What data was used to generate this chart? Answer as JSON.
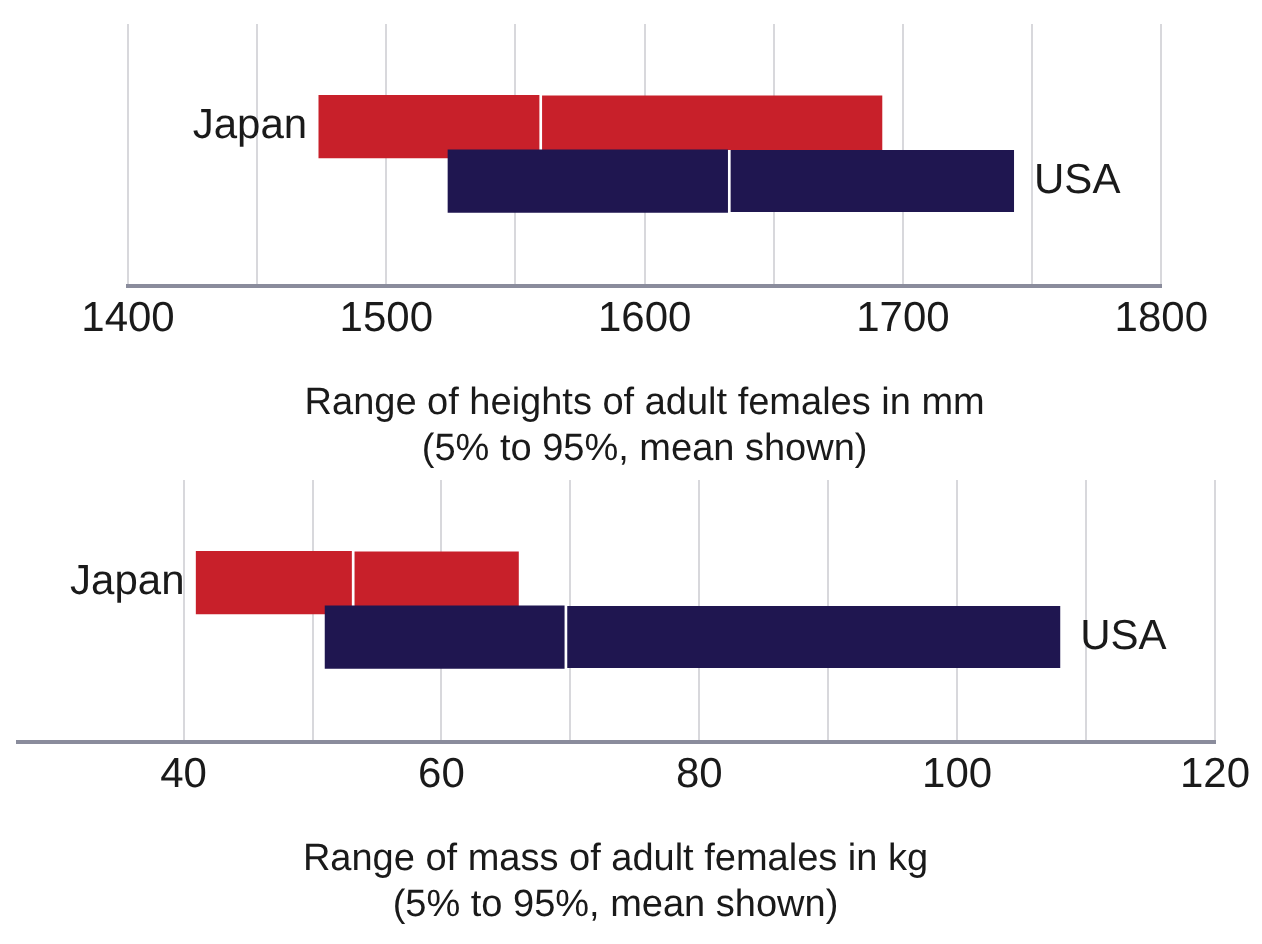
{
  "chart_data": [
    {
      "type": "bar",
      "orientation": "horizontal",
      "categories": [
        "Japan",
        "USA"
      ],
      "series": [
        {
          "colors": [
            "#c8202a",
            "#1f1650"
          ],
          "base": [
            1474,
            1524
          ],
          "values": [
            85,
            108
          ]
        },
        {
          "colors": [
            "#c8202a",
            "#1f1650"
          ],
          "base": [
            1559,
            1632
          ],
          "values": [
            133,
            111
          ]
        }
      ],
      "xlabel": "Range of heights of adult females in mm\n(5% to 95%, mean shown)",
      "xlim": [
        1400,
        1800
      ],
      "xticks": [
        1400,
        {
          "value": 1450,
          "label": null
        },
        1500,
        {
          "value": 1550,
          "label": null
        },
        1600,
        {
          "value": 1650,
          "label": null
        },
        1700,
        {
          "value": 1750,
          "label": null
        },
        1800
      ],
      "grid": "x"
    },
    {
      "type": "bar",
      "orientation": "horizontal",
      "categories": [
        "Japan",
        "USA"
      ],
      "series": [
        {
          "colors": [
            "#c8202a",
            "#1f1650"
          ],
          "base": [
            41,
            51
          ],
          "values": [
            12,
            18.5
          ]
        },
        {
          "colors": [
            "#c8202a",
            "#1f1650"
          ],
          "base": [
            53,
            69.5
          ],
          "values": [
            13,
            38.5
          ]
        }
      ],
      "xlabel": "Range of mass of adult females in kg\n(5% to 95%, mean shown)",
      "xlim": [
        27,
        120
      ],
      "xticks": [
        40,
        {
          "value": 50,
          "label": null
        },
        60,
        {
          "value": 70,
          "label": null
        },
        80,
        {
          "value": 90,
          "label": null
        },
        100,
        {
          "value": 110,
          "label": null
        },
        120
      ],
      "grid": "x"
    }
  ]
}
